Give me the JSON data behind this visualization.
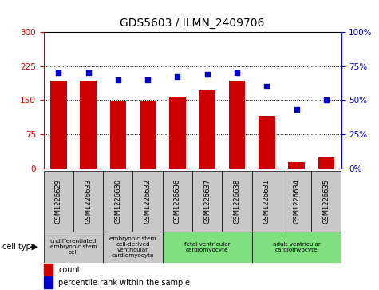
{
  "title": "GDS5603 / ILMN_2409706",
  "samples": [
    "GSM1226629",
    "GSM1226633",
    "GSM1226630",
    "GSM1226632",
    "GSM1226636",
    "GSM1226637",
    "GSM1226638",
    "GSM1226631",
    "GSM1226634",
    "GSM1226635"
  ],
  "counts": [
    193,
    193,
    148,
    148,
    158,
    172,
    192,
    115,
    14,
    24
  ],
  "percentiles": [
    70,
    70,
    65,
    65,
    67,
    69,
    70,
    60,
    43,
    50
  ],
  "ylim_left": [
    0,
    300
  ],
  "ylim_right": [
    0,
    100
  ],
  "yticks_left": [
    0,
    75,
    150,
    225,
    300
  ],
  "yticks_right": [
    0,
    25,
    50,
    75,
    100
  ],
  "bar_color": "#cc0000",
  "dot_color": "#0000cc",
  "cell_types": [
    {
      "label": "undifferentiated\nembryonic stem\ncell",
      "start": 0,
      "end": 2,
      "color": "#c8c8c8"
    },
    {
      "label": "embryonic stem\ncell-derived\nventricular\ncardiomyocyte",
      "start": 2,
      "end": 4,
      "color": "#c8c8c8"
    },
    {
      "label": "fetal ventricular\ncardiomyocyte",
      "start": 4,
      "end": 7,
      "color": "#80e080"
    },
    {
      "label": "adult ventricular\ncardiomyocyte",
      "start": 7,
      "end": 10,
      "color": "#80e080"
    }
  ],
  "legend_count_label": "count",
  "legend_percentile_label": "percentile rank within the sample",
  "cell_type_label": "cell type",
  "sample_row_color": "#c8c8c8",
  "background_color": "#ffffff"
}
